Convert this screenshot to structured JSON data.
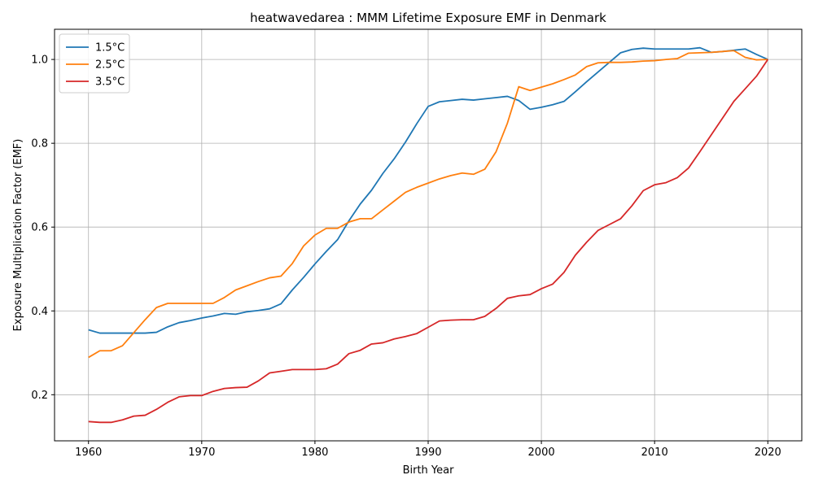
{
  "chart_data": {
    "type": "line",
    "title": "heatwavedarea : MMM Lifetime Exposure EMF in Denmark",
    "xlabel": "Birth Year",
    "ylabel": "Exposure Multiplication Factor (EMF)",
    "xlim": [
      1957,
      2023
    ],
    "ylim": [
      0.09,
      1.072
    ],
    "xticks": [
      1960,
      1970,
      1980,
      1990,
      2000,
      2010,
      2020
    ],
    "yticks": [
      0.2,
      0.4,
      0.6,
      0.8,
      1.0
    ],
    "xtick_labels": [
      "1960",
      "1970",
      "1980",
      "1990",
      "2000",
      "2010",
      "2020"
    ],
    "ytick_labels": [
      "0.2",
      "0.4",
      "0.6",
      "0.8",
      "1.0"
    ],
    "grid": true,
    "legend_position": "top-left",
    "x": [
      1960,
      1961,
      1962,
      1963,
      1964,
      1965,
      1966,
      1967,
      1968,
      1969,
      1970,
      1971,
      1972,
      1973,
      1974,
      1975,
      1976,
      1977,
      1978,
      1979,
      1980,
      1981,
      1982,
      1983,
      1984,
      1985,
      1986,
      1987,
      1988,
      1989,
      1990,
      1991,
      1992,
      1993,
      1994,
      1995,
      1996,
      1997,
      1998,
      1999,
      2000,
      2001,
      2002,
      2003,
      2004,
      2005,
      2006,
      2007,
      2008,
      2009,
      2010,
      2011,
      2012,
      2013,
      2014,
      2015,
      2016,
      2017,
      2018,
      2019,
      2020
    ],
    "series": [
      {
        "name": "1.5°C",
        "color": "#1f77b4",
        "values": [
          0.355,
          0.347,
          0.347,
          0.347,
          0.347,
          0.347,
          0.349,
          0.362,
          0.372,
          0.377,
          0.383,
          0.388,
          0.394,
          0.392,
          0.398,
          0.401,
          0.405,
          0.417,
          0.45,
          0.48,
          0.512,
          0.542,
          0.57,
          0.615,
          0.655,
          0.688,
          0.728,
          0.763,
          0.803,
          0.847,
          0.888,
          0.899,
          0.902,
          0.905,
          0.903,
          0.906,
          0.909,
          0.912,
          0.902,
          0.881,
          0.886,
          0.892,
          0.9,
          0.923,
          0.947,
          0.97,
          0.993,
          1.016,
          1.024,
          1.027,
          1.025,
          1.025,
          1.025,
          1.025,
          1.028,
          1.017,
          1.019,
          1.022,
          1.025,
          1.012,
          1.0
        ]
      },
      {
        "name": "2.5°C",
        "color": "#ff7f0e",
        "values": [
          0.289,
          0.305,
          0.305,
          0.317,
          0.348,
          0.379,
          0.408,
          0.418,
          0.418,
          0.418,
          0.418,
          0.418,
          0.432,
          0.45,
          0.46,
          0.47,
          0.479,
          0.483,
          0.513,
          0.555,
          0.581,
          0.597,
          0.597,
          0.612,
          0.62,
          0.62,
          0.641,
          0.662,
          0.683,
          0.695,
          0.705,
          0.715,
          0.723,
          0.729,
          0.726,
          0.738,
          0.78,
          0.848,
          0.935,
          0.926,
          0.934,
          0.942,
          0.952,
          0.963,
          0.983,
          0.992,
          0.993,
          0.993,
          0.994,
          0.996,
          0.997,
          1.0,
          1.002,
          1.015,
          1.016,
          1.017,
          1.019,
          1.021,
          1.005,
          0.999,
          1.0
        ]
      },
      {
        "name": "3.5°C",
        "color": "#d62728",
        "values": [
          0.136,
          0.134,
          0.134,
          0.14,
          0.149,
          0.151,
          0.165,
          0.182,
          0.195,
          0.198,
          0.198,
          0.208,
          0.215,
          0.217,
          0.218,
          0.233,
          0.252,
          0.256,
          0.26,
          0.26,
          0.26,
          0.262,
          0.273,
          0.298,
          0.306,
          0.321,
          0.324,
          0.333,
          0.339,
          0.346,
          0.361,
          0.376,
          0.378,
          0.379,
          0.379,
          0.387,
          0.406,
          0.43,
          0.436,
          0.439,
          0.453,
          0.464,
          0.492,
          0.533,
          0.564,
          0.592,
          0.606,
          0.62,
          0.651,
          0.687,
          0.701,
          0.706,
          0.718,
          0.741,
          0.78,
          0.82,
          0.86,
          0.9,
          0.93,
          0.96,
          1.0
        ]
      }
    ]
  }
}
